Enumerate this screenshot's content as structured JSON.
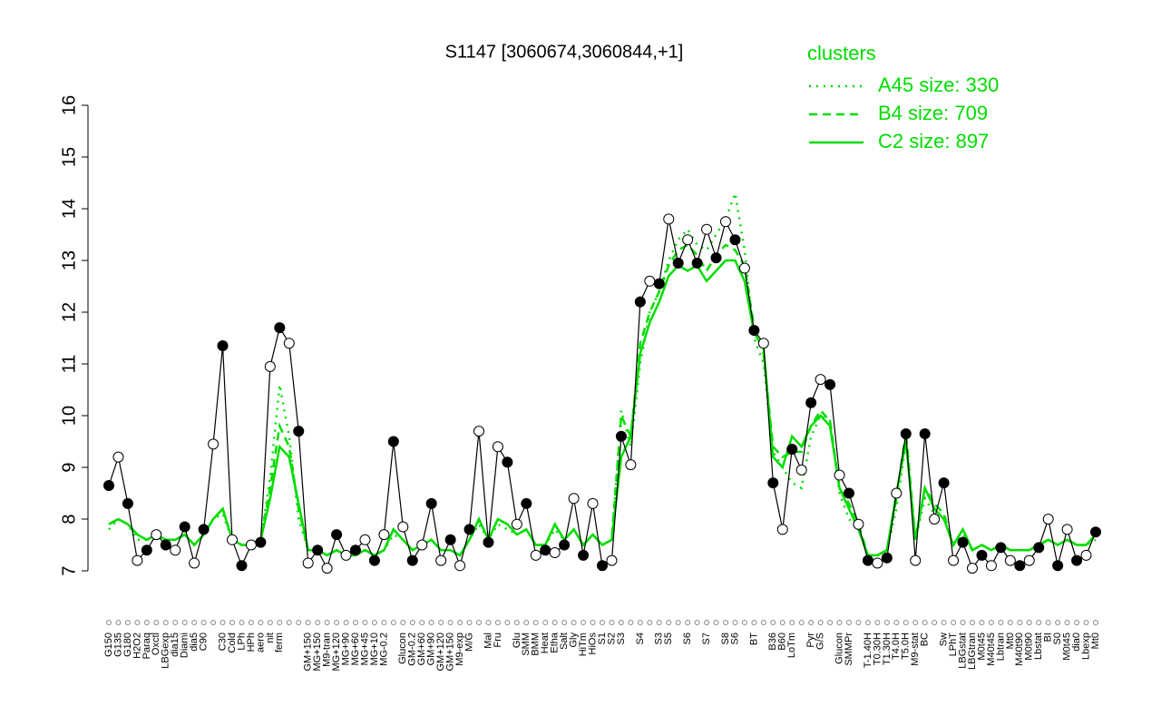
{
  "chart_data": {
    "type": "line",
    "title": "S1147 [3060674,3060844,+1]",
    "legend_title": "clusters",
    "categories": [
      "G150",
      "G135",
      "G180",
      "H2O2",
      "Paraq",
      "Oxctl",
      "LBGexp",
      "dia15",
      "Diami",
      "dia5",
      "C90",
      null,
      "C30",
      "Cold",
      "LPh",
      "HPh",
      "aero",
      "nit",
      "ferm",
      null,
      null,
      "GM+150",
      "MG+150",
      "M9-tran",
      "MG+120",
      "MG+90",
      "MG+60",
      "MG+45",
      "MG+10",
      "MG-0.2",
      null,
      "Glucon",
      "GM-0.2",
      "GM+60",
      "GM+90",
      "GM+120",
      "GM+150",
      "M9-exp",
      "M/G",
      null,
      "Mal",
      "Fru",
      null,
      "Glu",
      "SMM",
      "BMM",
      "Heat",
      "Etha",
      "Salt",
      "Gly",
      "HiTm",
      "HiOs",
      "S1",
      "S2",
      "S3",
      null,
      "S4",
      null,
      "S3",
      "S5",
      null,
      "S6",
      null,
      "S7",
      null,
      "S8",
      "S6",
      null,
      "BT",
      null,
      "B36",
      "B60",
      "LoTm",
      null,
      "Pyr",
      "G/S",
      null,
      "Glucon",
      "SMMPr",
      null,
      "T-1.40H",
      "T0.30H",
      "T1.30H",
      "T4.0H",
      "T5.0H",
      "M9-stat",
      "BC",
      null,
      "Sw",
      "LPhT",
      "LBGstat",
      "LBGtran",
      "M0t45",
      "M40t45",
      "Lbtran",
      "Mt0",
      "M40t90",
      "M0t90",
      "Lbstat",
      "BI",
      "S0",
      "M0t45",
      "dia0",
      "Lbexp",
      "Mt0"
    ],
    "values": [
      8.65,
      9.2,
      8.3,
      7.2,
      7.4,
      7.7,
      7.5,
      7.4,
      7.85,
      7.15,
      7.8,
      9.45,
      11.35,
      7.6,
      7.1,
      7.5,
      7.55,
      10.95,
      11.7,
      11.4,
      9.7,
      7.15,
      7.4,
      7.05,
      7.7,
      7.3,
      7.4,
      7.6,
      7.2,
      7.7,
      9.5,
      7.85,
      7.2,
      7.5,
      8.3,
      7.2,
      7.6,
      7.1,
      7.8,
      9.7,
      7.55,
      9.4,
      9.1,
      7.9,
      8.3,
      7.3,
      7.4,
      7.35,
      7.5,
      8.4,
      7.3,
      8.3,
      7.1,
      7.2,
      9.6,
      9.05,
      12.2,
      12.6,
      12.55,
      13.8,
      12.95,
      13.4,
      12.95,
      13.6,
      13.05,
      13.75,
      13.4,
      12.85,
      11.65,
      11.4,
      8.7,
      7.8,
      9.35,
      8.95,
      10.25,
      10.7,
      10.6,
      8.85,
      8.5,
      7.9,
      7.2,
      7.15,
      7.25,
      8.5,
      9.65,
      7.2,
      9.65,
      8.0,
      8.7,
      7.2,
      7.55,
      7.05,
      7.3,
      7.1,
      7.45,
      7.2,
      7.1,
      7.2,
      7.45,
      8.0,
      7.1,
      7.8,
      7.2,
      7.3,
      7.75
    ],
    "color": "#000000",
    "series": [
      {
        "name": "A45 size: 330",
        "style": "dotted",
        "color": "#00dd00",
        "values": [
          7.8,
          8.0,
          7.9,
          7.6,
          7.6,
          7.7,
          7.6,
          7.6,
          7.7,
          7.5,
          7.7,
          8.0,
          8.1,
          7.6,
          7.5,
          7.5,
          7.6,
          8.8,
          10.6,
          9.6,
          8.0,
          7.4,
          7.4,
          7.3,
          7.4,
          7.3,
          7.3,
          7.4,
          7.3,
          7.4,
          7.7,
          7.6,
          7.4,
          7.5,
          7.6,
          7.4,
          7.4,
          7.3,
          7.6,
          7.9,
          7.6,
          7.9,
          7.8,
          7.7,
          7.8,
          7.5,
          7.5,
          7.8,
          7.6,
          7.8,
          7.5,
          7.7,
          7.5,
          7.6,
          10.1,
          9.4,
          11.0,
          12.0,
          12.4,
          13.0,
          13.4,
          13.6,
          13.3,
          13.2,
          13.5,
          13.8,
          14.3,
          13.2,
          11.5,
          11.0,
          9.3,
          9.0,
          8.7,
          8.6,
          9.6,
          10.0,
          9.9,
          8.5,
          8.0,
          7.8,
          7.3,
          7.3,
          7.4,
          8.2,
          9.5,
          7.6,
          8.4,
          8.1,
          8.0,
          7.5,
          7.7,
          7.4,
          7.5,
          7.4,
          7.5,
          7.4,
          7.4,
          7.4,
          7.5,
          7.6,
          7.5,
          7.6,
          7.5,
          7.5,
          7.6
        ]
      },
      {
        "name": "B4 size: 709",
        "style": "dashed",
        "color": "#00dd00",
        "values": [
          7.9,
          8.0,
          7.9,
          7.7,
          7.6,
          7.7,
          7.6,
          7.6,
          7.7,
          7.5,
          7.7,
          8.0,
          8.2,
          7.6,
          7.5,
          7.5,
          7.6,
          8.6,
          9.8,
          9.4,
          8.2,
          7.4,
          7.4,
          7.3,
          7.4,
          7.3,
          7.3,
          7.4,
          7.3,
          7.4,
          7.8,
          7.6,
          7.4,
          7.5,
          7.6,
          7.4,
          7.4,
          7.3,
          7.6,
          8.0,
          7.6,
          8.0,
          7.9,
          7.7,
          7.8,
          7.5,
          7.5,
          7.9,
          7.6,
          7.8,
          7.5,
          7.7,
          7.5,
          7.6,
          10.0,
          9.6,
          11.4,
          12.0,
          12.4,
          12.9,
          13.2,
          13.3,
          13.1,
          12.8,
          13.1,
          13.3,
          13.2,
          12.9,
          11.7,
          11.2,
          9.4,
          9.2,
          9.3,
          9.3,
          9.8,
          10.1,
          9.9,
          8.6,
          8.3,
          7.9,
          7.3,
          7.3,
          7.4,
          8.4,
          9.7,
          7.6,
          8.6,
          8.3,
          8.1,
          7.5,
          7.8,
          7.4,
          7.5,
          7.4,
          7.5,
          7.4,
          7.4,
          7.4,
          7.5,
          7.6,
          7.5,
          7.6,
          7.5,
          7.5,
          7.7
        ]
      },
      {
        "name": "C2 size: 897",
        "style": "solid",
        "color": "#00dd00",
        "values": [
          7.9,
          8.0,
          7.9,
          7.7,
          7.6,
          7.7,
          7.6,
          7.6,
          7.7,
          7.5,
          7.7,
          8.0,
          8.2,
          7.6,
          7.5,
          7.5,
          7.6,
          8.4,
          9.4,
          9.2,
          8.3,
          7.4,
          7.4,
          7.3,
          7.4,
          7.3,
          7.3,
          7.4,
          7.3,
          7.4,
          7.8,
          7.6,
          7.4,
          7.5,
          7.6,
          7.4,
          7.4,
          7.3,
          7.6,
          8.0,
          7.6,
          8.0,
          7.9,
          7.7,
          7.8,
          7.5,
          7.5,
          7.9,
          7.6,
          7.8,
          7.5,
          7.7,
          7.5,
          7.6,
          9.2,
          9.6,
          11.2,
          11.8,
          12.2,
          12.7,
          12.9,
          12.8,
          12.9,
          12.6,
          12.8,
          13.0,
          13.0,
          12.6,
          11.6,
          11.3,
          9.2,
          9.0,
          9.6,
          9.4,
          9.8,
          10.0,
          9.8,
          8.6,
          8.2,
          7.8,
          7.3,
          7.3,
          7.4,
          8.5,
          9.5,
          7.6,
          8.6,
          8.2,
          8.0,
          7.5,
          7.8,
          7.4,
          7.5,
          7.4,
          7.5,
          7.4,
          7.4,
          7.4,
          7.5,
          7.6,
          7.5,
          7.6,
          7.5,
          7.5,
          7.7
        ]
      }
    ],
    "ylim": [
      7,
      16
    ],
    "yticks": [
      7,
      8,
      9,
      10,
      11,
      12,
      13,
      14,
      15,
      16
    ]
  }
}
